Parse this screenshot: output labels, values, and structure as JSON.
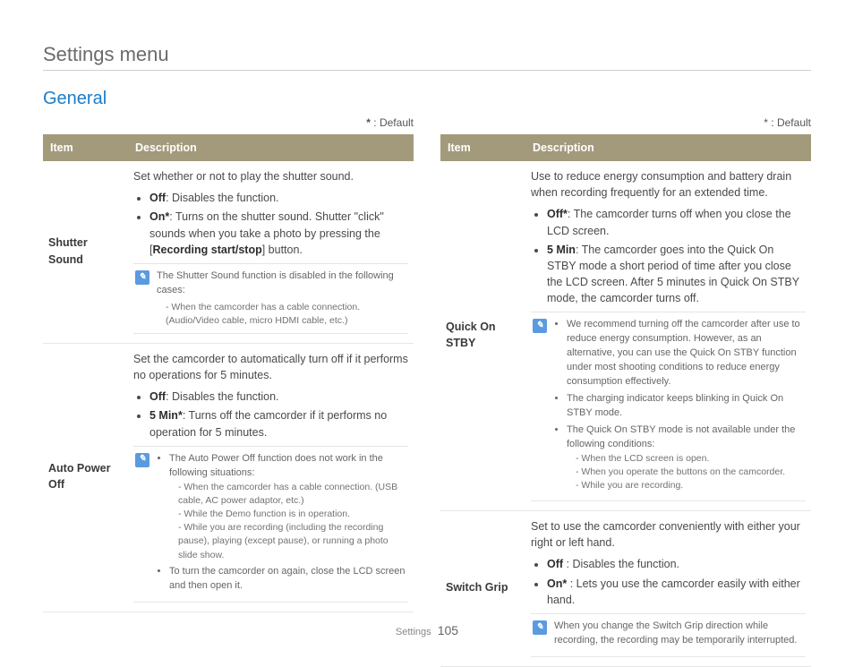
{
  "page": {
    "title": "Settings menu",
    "section": "General",
    "footer_label": "Settings",
    "page_number": "105"
  },
  "default_legend": "* : Default",
  "columns": {
    "item_header": "Item",
    "desc_header": "Description"
  },
  "left": {
    "shutter_sound": {
      "item": "Shutter Sound",
      "intro": "Set whether or not to play the shutter sound.",
      "off_label": "Off",
      "off_text": ": Disables the function.",
      "on_label": "On*",
      "on_text_a": ": Turns on the shutter sound. Shutter \"click\" sounds when you take a photo by pressing the [",
      "on_btn": "Recording start/stop",
      "on_text_b": "] button.",
      "note_intro": "The Shutter Sound function is disabled in the following cases:",
      "note_sub": "- When the camcorder has a cable connection. (Audio/Video cable, micro HDMI cable, etc.)"
    },
    "auto_power_off": {
      "item": "Auto Power Off",
      "intro": "Set the camcorder to automatically turn off if it performs no operations for 5 minutes.",
      "off_label": "Off",
      "off_text": ": Disables the function.",
      "min_label": "5 Min*",
      "min_text": ": Turns off the camcorder if it performs no operation for 5 minutes.",
      "note_b1": "The Auto Power Off function does not work in the following situations:",
      "note_b1_sub1": "- When the camcorder has a cable connection. (USB cable, AC power adaptor, etc.)",
      "note_b1_sub2": "- While the Demo function is in operation.",
      "note_b1_sub3": "- While you are recording (including the recording pause), playing (except pause), or running a photo slide show.",
      "note_b2": "To turn the camcorder on again, close the LCD screen and then open it."
    }
  },
  "right": {
    "quick_on_stby": {
      "item": "Quick On STBY",
      "intro": "Use to reduce energy consumption and battery drain when recording frequently for an extended time.",
      "off_label": "Off*",
      "off_text": ": The camcorder turns off when you close the LCD screen.",
      "min_label": "5 Min",
      "min_text": ": The camcorder goes into the Quick On STBY mode a short period of time after you close the LCD screen. After 5 minutes in Quick On STBY mode, the camcorder turns off.",
      "note_b1": "We recommend turning off the camcorder after use to reduce energy consumption. However, as an alternative, you can use the Quick On STBY function under most shooting conditions to reduce energy consumption effectively.",
      "note_b2": "The charging indicator keeps blinking in Quick On STBY mode.",
      "note_b3": "The Quick On STBY mode is not available under the following conditions:",
      "note_b3_sub1": "- When the LCD screen is open.",
      "note_b3_sub2": "- When you operate the buttons on the camcorder.",
      "note_b3_sub3": "- While you are recording."
    },
    "switch_grip": {
      "item": "Switch Grip",
      "intro": "Set to use the camcorder conveniently with either your right or left hand.",
      "off_label": "Off",
      "off_text": " : Disables the function.",
      "on_label": "On*",
      "on_text": " : Lets you use the camcorder easily with either hand.",
      "note": "When you change the Switch Grip direction while recording, the recording may be temporarily interrupted."
    }
  },
  "style": {
    "header_bg": "#a39a7b",
    "link_color": "#1a7dc9",
    "note_icon_bg": "#5a9be0"
  }
}
